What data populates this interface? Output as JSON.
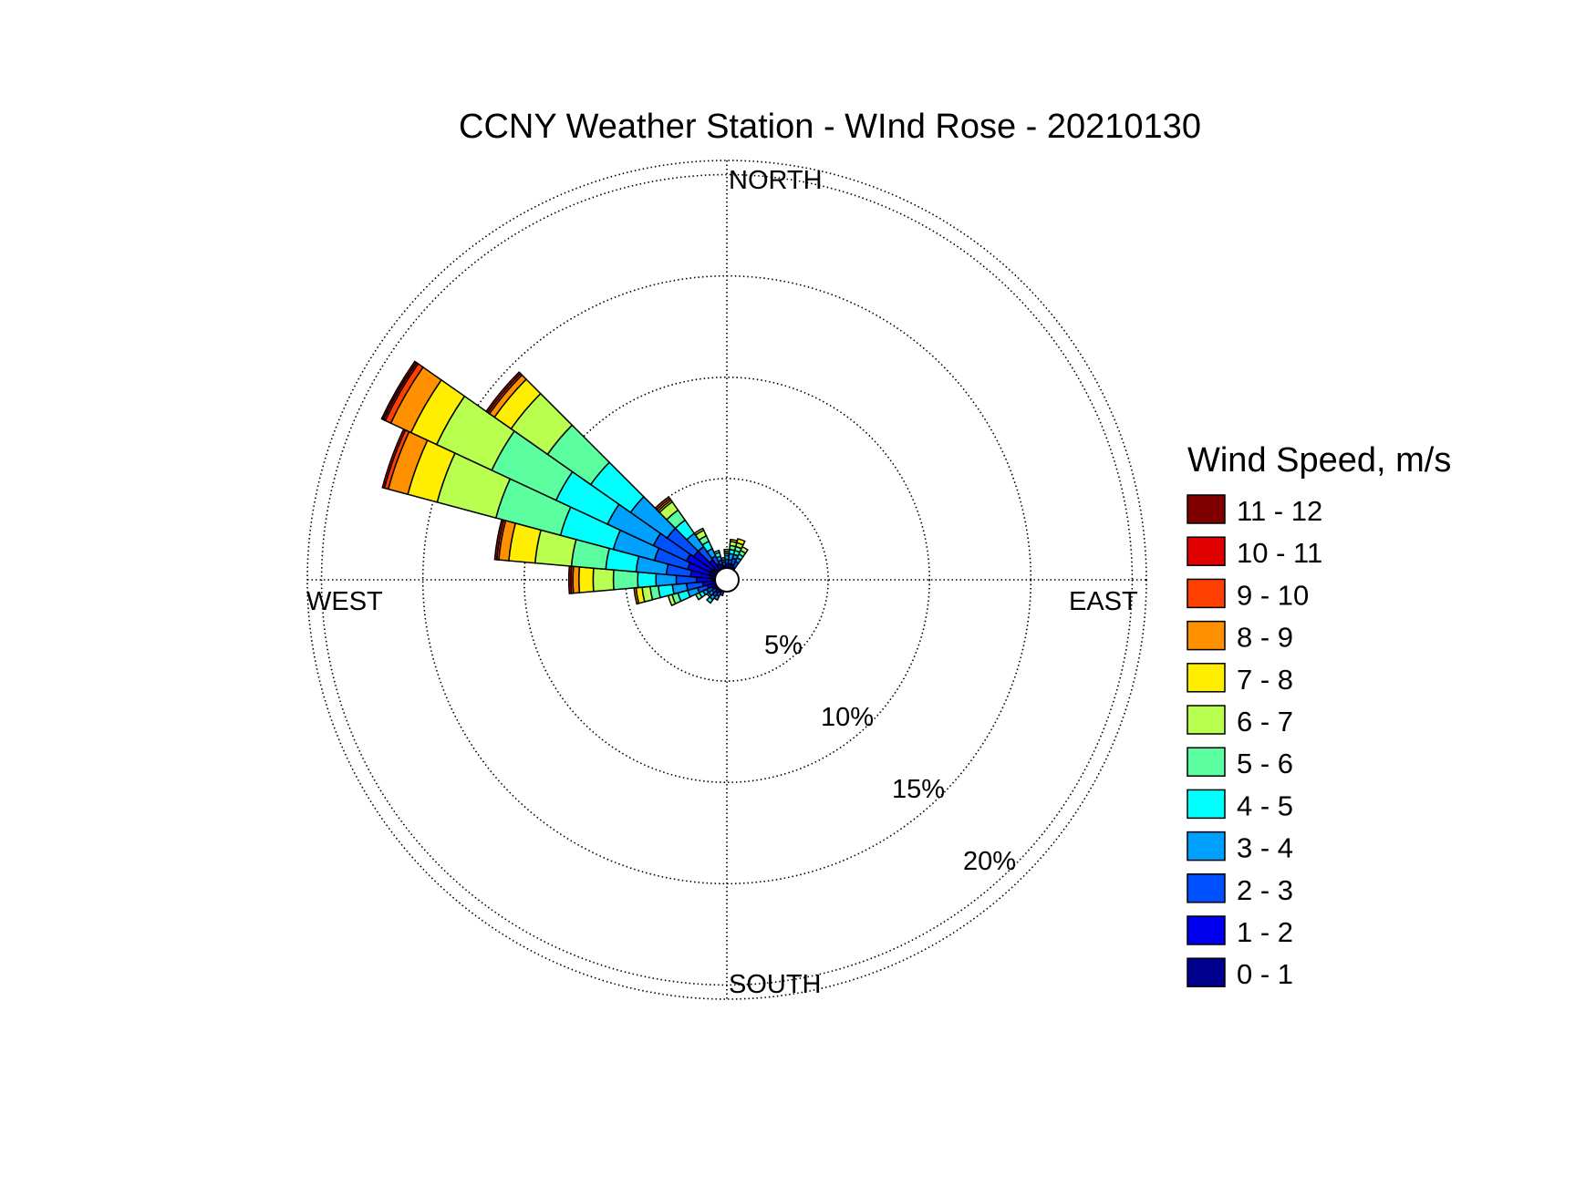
{
  "chart_data": {
    "type": "windrose",
    "title": "CCNY Weather Station - WInd Rose - 20210130",
    "direction_labels": {
      "north": "NORTH",
      "east": "EAST",
      "south": "SOUTH",
      "west": "WEST"
    },
    "ring_labels": [
      "5%",
      "10%",
      "15%",
      "20%"
    ],
    "rings": [
      5,
      10,
      15,
      20
    ],
    "rmax": 20.7,
    "grid": true,
    "legend": {
      "title": "Wind Speed, m/s",
      "position": "right",
      "bins": [
        "11 - 12",
        "10 - 11",
        "9 - 10",
        "8 - 9",
        "7 - 8",
        "6 - 7",
        "5 - 6",
        "4 - 5",
        "3 - 4",
        "2 - 3",
        "1 - 2",
        "0 - 1"
      ],
      "colors": [
        "#800000",
        "#e00000",
        "#ff4000",
        "#ff9000",
        "#ffee00",
        "#b8ff50",
        "#5cffa0",
        "#00ffff",
        "#00a0ff",
        "#0050ff",
        "#0000ee",
        "#00008f"
      ]
    },
    "speed_bins": [
      "0 - 1",
      "1 - 2",
      "2 - 3",
      "3 - 4",
      "4 - 5",
      "5 - 6",
      "6 - 7",
      "7 - 8",
      "8 - 9",
      "9 - 10",
      "10 - 11",
      "11 - 12"
    ],
    "bin_colors": [
      "#00008f",
      "#0000ee",
      "#0050ff",
      "#00a0ff",
      "#00ffff",
      "#5cffa0",
      "#b8ff50",
      "#ffee00",
      "#ff9000",
      "#ff4000",
      "#e00000",
      "#800000"
    ],
    "sector_width_deg": 10,
    "sectors": [
      {
        "direction_deg": 0,
        "cumulative": [
          0.5,
          0.8,
          1.0,
          1.2,
          1.3,
          1.4,
          1.5
        ]
      },
      {
        "direction_deg": 10,
        "cumulative": [
          0.5,
          0.8,
          1.0,
          1.3,
          1.5,
          1.7,
          1.9,
          2.0
        ]
      },
      {
        "direction_deg": 20,
        "cumulative": [
          0.5,
          0.8,
          1.1,
          1.3,
          1.5,
          1.7,
          1.9,
          2.1
        ]
      },
      {
        "direction_deg": 30,
        "cumulative": [
          0.5,
          0.7,
          1.0,
          1.2,
          1.4,
          1.6,
          1.8
        ]
      },
      {
        "direction_deg": 200,
        "cumulative": [
          0.4,
          0.6,
          0.8
        ]
      },
      {
        "direction_deg": 210,
        "cumulative": [
          0.5,
          0.7,
          0.9,
          1.1
        ]
      },
      {
        "direction_deg": 220,
        "cumulative": [
          0.5,
          0.8,
          1.0,
          1.2,
          1.4
        ]
      },
      {
        "direction_deg": 230,
        "cumulative": [
          0.5,
          0.7,
          0.9,
          1.1,
          1.2
        ]
      },
      {
        "direction_deg": 240,
        "cumulative": [
          0.5,
          0.8,
          1.1,
          1.3,
          1.5,
          1.7
        ]
      },
      {
        "direction_deg": 250,
        "cumulative": [
          0.6,
          1.0,
          1.5,
          2.0,
          2.5,
          2.8,
          3.0
        ]
      },
      {
        "direction_deg": 260,
        "cumulative": [
          0.6,
          1.2,
          2.0,
          2.7,
          3.4,
          3.8,
          4.2,
          4.5,
          4.6
        ]
      },
      {
        "direction_deg": 270,
        "cumulative": [
          0.7,
          1.5,
          2.5,
          3.5,
          4.4,
          5.6,
          6.6,
          7.3,
          7.6,
          7.7,
          7.8
        ]
      },
      {
        "direction_deg": 280,
        "cumulative": [
          0.8,
          1.8,
          3.0,
          4.5,
          6.0,
          7.7,
          9.5,
          10.8,
          11.3,
          11.4,
          11.5
        ]
      },
      {
        "direction_deg": 290,
        "cumulative": [
          0.9,
          2.0,
          3.7,
          5.8,
          8.5,
          11.8,
          14.8,
          16.3,
          17.3,
          17.5,
          17.6
        ]
      },
      {
        "direction_deg": 300,
        "cumulative": [
          0.9,
          2.2,
          4.0,
          6.5,
          9.3,
          12.8,
          15.8,
          17.2,
          18.3,
          18.6,
          18.7,
          18.8
        ]
      },
      {
        "direction_deg": 310,
        "cumulative": [
          0.8,
          2.0,
          3.6,
          5.8,
          8.2,
          10.8,
          13.0,
          14.0,
          14.3,
          14.4,
          14.5
        ]
      },
      {
        "direction_deg": 320,
        "cumulative": [
          0.6,
          1.2,
          2.0,
          2.8,
          3.6,
          4.2,
          4.7,
          4.8,
          4.9,
          5.0
        ]
      },
      {
        "direction_deg": 330,
        "cumulative": [
          0.5,
          0.9,
          1.3,
          1.7,
          2.1,
          2.4,
          2.7,
          2.8
        ]
      },
      {
        "direction_deg": 340,
        "cumulative": [
          0.5,
          0.8,
          1.0,
          1.2,
          1.4,
          1.5
        ]
      },
      {
        "direction_deg": 350,
        "cumulative": [
          0.5,
          0.7,
          0.9,
          1.0,
          1.1
        ]
      }
    ]
  }
}
